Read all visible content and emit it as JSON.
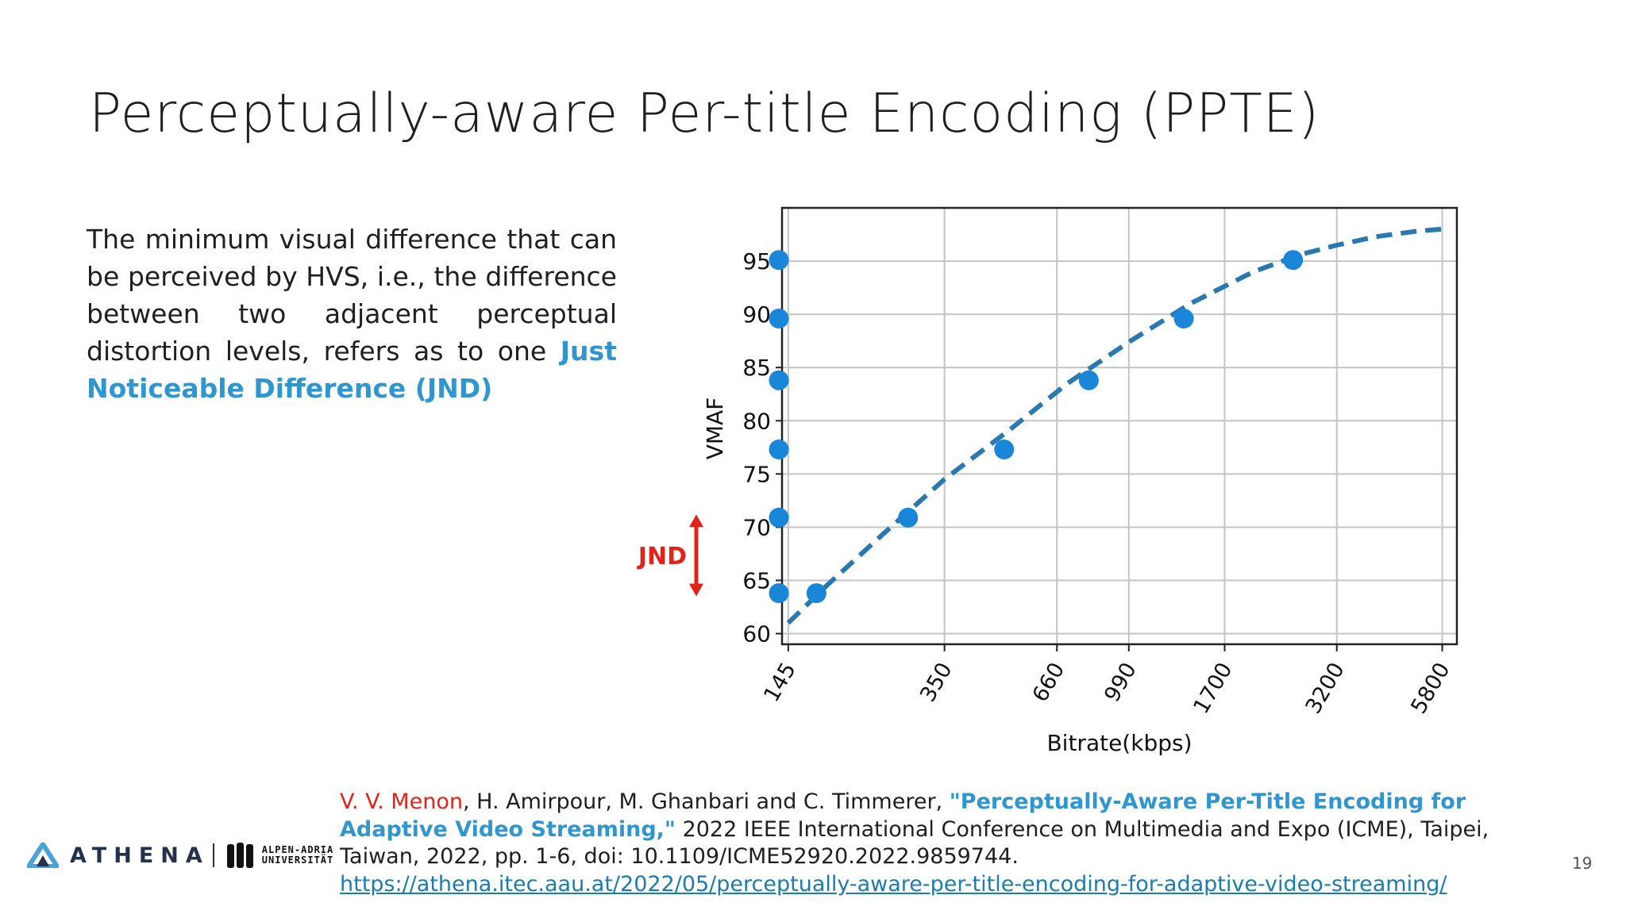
{
  "slide": {
    "title": "Perceptually-aware Per-title Encoding (PPTE)",
    "body_text": "The minimum visual difference that can be perceived by HVS, i.e., the difference between two adjacent perceptual distortion levels, refers as to one",
    "body_emphasis": "Just Noticeable Difference (JND)",
    "page_number": "19"
  },
  "citation": {
    "author_highlight": "V. V. Menon",
    "authors_rest": ", H. Amirpour, M. Ghanbari and C. Timmerer,",
    "paper_title": "\"Perceptually-Aware Per-Title Encoding for Adaptive Video Streaming,\"",
    "venue": "2022 IEEE International Conference on Multimedia and Expo (ICME), Taipei, Taiwan, 2022, pp. 1-6, doi: 10.1109/ICME52920.2022.9859744.",
    "link": "https://athena.itec.aau.at/2022/05/perceptually-aware-per-title-encoding-for-adaptive-video-streaming/"
  },
  "logo": {
    "athena": "ATHENA",
    "university_line1": "ALPEN-ADRIA",
    "university_line2": "UNIVERSITÄT"
  },
  "chart_data": {
    "type": "line",
    "x_scale": "log",
    "xlabel": "Bitrate(kbps)",
    "ylabel": "VMAF",
    "xlim": [
      140,
      6300
    ],
    "ylim": [
      59,
      100
    ],
    "x_ticks": [
      145,
      350,
      660,
      990,
      1700,
      3200,
      5800
    ],
    "y_ticks": [
      60,
      65,
      70,
      75,
      80,
      85,
      90,
      95
    ],
    "grid": true,
    "curve": {
      "style": "dashed",
      "color": "#2a78b0",
      "x": [
        145,
        180,
        250,
        350,
        500,
        700,
        1000,
        1400,
        2000,
        2600,
        3200,
        4000,
        5000,
        5800
      ],
      "y": [
        61,
        64.5,
        69.5,
        74.5,
        79,
        83.5,
        87.5,
        91,
        94,
        95.6,
        96.5,
        97.3,
        97.8,
        98
      ]
    },
    "points": {
      "color": "#1a86d8",
      "x": [
        170,
        285,
        490,
        790,
        1350,
        2500
      ],
      "y": [
        63.8,
        70.9,
        77.3,
        83.8,
        89.6,
        95.1
      ]
    },
    "jnd_levels": {
      "color": "#1a86d8",
      "y": [
        63.8,
        70.9,
        77.3,
        83.8,
        89.6,
        95.1
      ]
    },
    "annotation": {
      "label": "JND",
      "color": "#e2231a",
      "y_from": 63.8,
      "y_to": 70.9
    }
  }
}
